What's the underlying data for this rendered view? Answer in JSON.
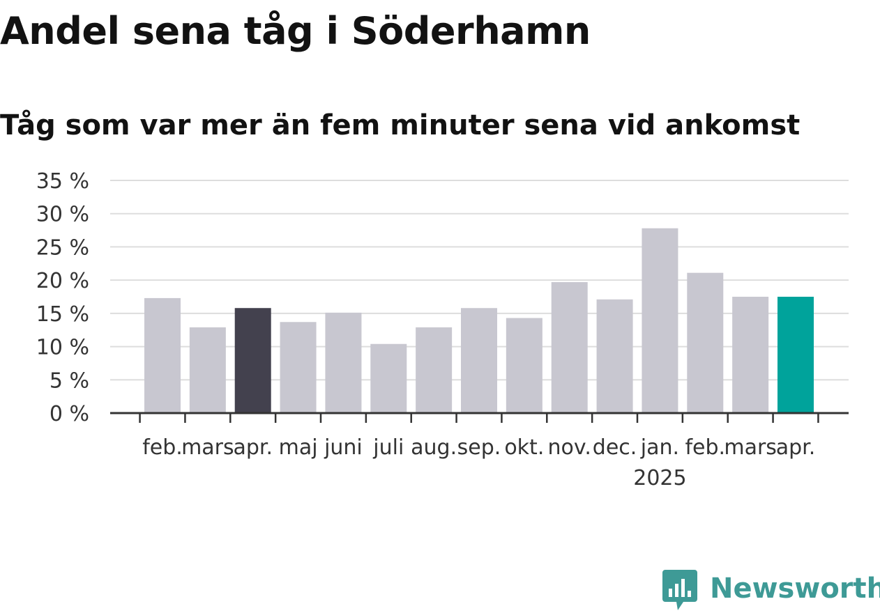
{
  "chart_data": {
    "type": "bar",
    "title": "Andel sena tåg i Söderhamn",
    "subtitle": "Tåg som var mer än fem minuter sena vid ankomst",
    "categories": [
      "feb.",
      "mars",
      "apr.",
      "maj",
      "juni",
      "juli",
      "aug.",
      "sep.",
      "okt.",
      "nov.",
      "dec.",
      "jan.",
      "feb.",
      "mars",
      "apr."
    ],
    "year_labels": [
      {
        "index": 11,
        "label": "2025"
      }
    ],
    "values": [
      17.3,
      12.9,
      15.8,
      13.7,
      15.1,
      10.4,
      12.9,
      15.8,
      14.3,
      19.7,
      17.1,
      27.8,
      21.1,
      17.5,
      17.5
    ],
    "y_ticks": [
      0,
      5,
      10,
      15,
      20,
      25,
      30,
      35
    ],
    "y_tick_labels": [
      "0 %",
      "5 %",
      "10 %",
      "15 %",
      "20 %",
      "25 %",
      "30 %",
      "35 %"
    ],
    "ylim": [
      0,
      35
    ],
    "grid": true,
    "colors": {
      "default": "#c8c7d0",
      "comparison": "#43414e",
      "current": "#00a39b",
      "grid": "#dddddd",
      "axis": "#333333"
    },
    "highlight": {
      "comparison_index": 2,
      "current_index": 14
    }
  },
  "branding": {
    "logo_text": "Newsworthy",
    "logo_icon": "newsworthy-chart-icon",
    "logo_color": "#3e9a96"
  }
}
